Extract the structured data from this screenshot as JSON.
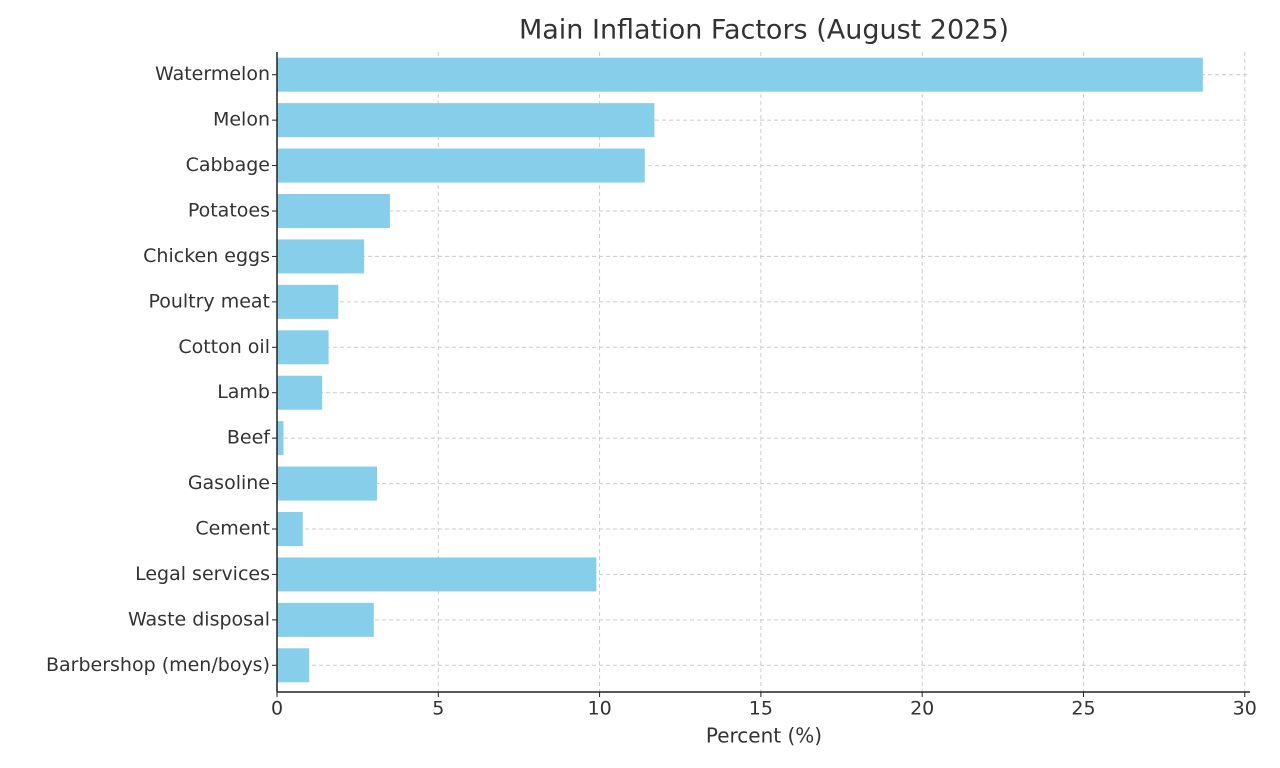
{
  "chart_data": {
    "type": "barh",
    "title": "Main Inflation Factors (August 2025)",
    "x_label": "Percent (%)",
    "categories": [
      "Watermelon",
      "Melon",
      "Cabbage",
      "Potatoes",
      "Chicken eggs",
      "Poultry meat",
      "Cotton oil",
      "Lamb",
      "Beef",
      "Gasoline",
      "Cement",
      "Legal services",
      "Waste disposal",
      "Barbershop (men/boys)"
    ],
    "values": [
      28.7,
      11.7,
      11.4,
      3.5,
      2.7,
      1.9,
      1.6,
      1.4,
      0.2,
      3.1,
      0.8,
      9.9,
      3.0,
      1.0
    ],
    "color": "#87ceeb",
    "xlim": [
      0,
      30.1
    ],
    "xticks": [
      0,
      5,
      10,
      15,
      20,
      25,
      30
    ],
    "grid": true
  }
}
